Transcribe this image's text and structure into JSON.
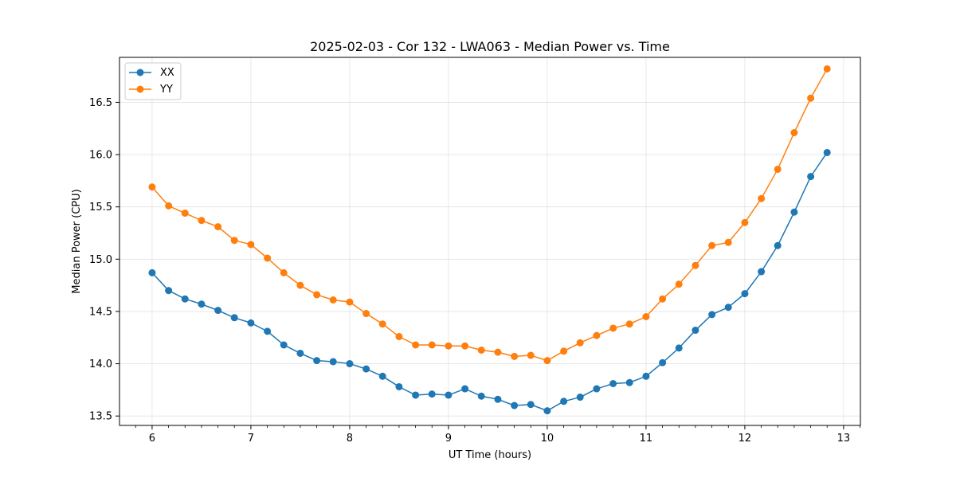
{
  "chart_data": {
    "type": "line",
    "title": "2025-02-03 - Cor 132 - LWA063 - Median Power vs. Time",
    "xlabel": "UT Time (hours)",
    "ylabel": "Median Power (CPU)",
    "xlim": [
      5.67,
      13.17
    ],
    "ylim": [
      13.41,
      16.93
    ],
    "xticks": [
      6,
      7,
      8,
      9,
      10,
      11,
      12,
      13
    ],
    "yticks": [
      13.5,
      14.0,
      14.5,
      15.0,
      15.5,
      16.0,
      16.5
    ],
    "grid": true,
    "legend_position": "top-left",
    "x": [
      6.0,
      6.167,
      6.333,
      6.5,
      6.667,
      6.833,
      7.0,
      7.167,
      7.333,
      7.5,
      7.667,
      7.833,
      8.0,
      8.167,
      8.333,
      8.5,
      8.667,
      8.833,
      9.0,
      9.167,
      9.333,
      9.5,
      9.667,
      9.833,
      10.0,
      10.167,
      10.333,
      10.5,
      10.667,
      10.833,
      11.0,
      11.167,
      11.333,
      11.5,
      11.667,
      11.833,
      12.0,
      12.167,
      12.333,
      12.5,
      12.667,
      12.833
    ],
    "series": [
      {
        "name": "XX",
        "color": "#1f77b4",
        "values": [
          14.87,
          14.7,
          14.62,
          14.57,
          14.51,
          14.44,
          14.39,
          14.31,
          14.18,
          14.1,
          14.03,
          14.02,
          14.0,
          13.95,
          13.88,
          13.78,
          13.7,
          13.71,
          13.7,
          13.76,
          13.69,
          13.66,
          13.6,
          13.61,
          13.55,
          13.64,
          13.68,
          13.76,
          13.81,
          13.82,
          13.88,
          14.01,
          14.15,
          14.32,
          14.47,
          14.54,
          14.67,
          14.88,
          15.13,
          15.45,
          15.79,
          16.02
        ]
      },
      {
        "name": "YY",
        "color": "#ff7f0e",
        "values": [
          15.69,
          15.51,
          15.44,
          15.37,
          15.31,
          15.18,
          15.14,
          15.01,
          14.87,
          14.75,
          14.66,
          14.61,
          14.59,
          14.48,
          14.38,
          14.26,
          14.18,
          14.18,
          14.17,
          14.17,
          14.13,
          14.11,
          14.07,
          14.08,
          14.03,
          14.12,
          14.2,
          14.27,
          14.34,
          14.38,
          14.45,
          14.62,
          14.76,
          14.94,
          15.13,
          15.16,
          15.35,
          15.58,
          15.86,
          16.21,
          16.54,
          16.82
        ]
      }
    ]
  }
}
